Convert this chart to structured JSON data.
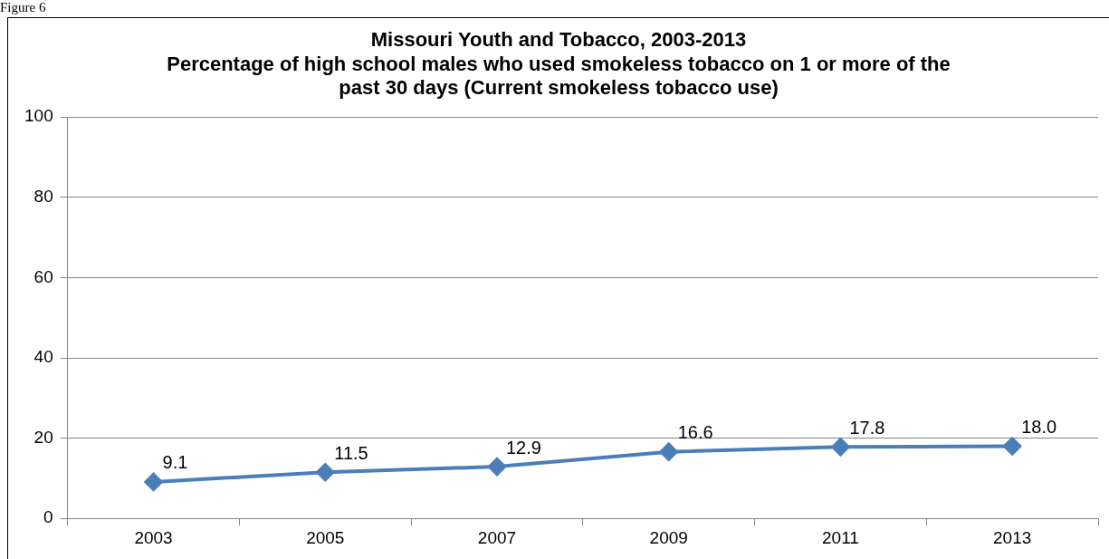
{
  "chart_data": {
    "type": "line",
    "title": "Missouri Youth and Tobacco, 2003-2013",
    "subtitle": "Percentage of high school males who used smokeless tobacco on 1 or more of the past 30 days (Current smokeless tobacco use)",
    "categories": [
      "2003",
      "2005",
      "2007",
      "2009",
      "2011",
      "2013"
    ],
    "series": [
      {
        "color": "#4a7ebb",
        "values": [
          9.1,
          11.5,
          12.9,
          16.6,
          17.8,
          18.0
        ]
      }
    ],
    "value_labels": [
      "9.1",
      "11.5",
      "12.9",
      "16.6",
      "17.8",
      "18.0"
    ],
    "ylim": [
      0,
      100
    ],
    "yticks": [
      0,
      20,
      40,
      60,
      80,
      100
    ],
    "grid": "y",
    "marker": "diamond",
    "line_style": "solid",
    "legend": false,
    "annotations": [
      "Figure 6"
    ]
  }
}
